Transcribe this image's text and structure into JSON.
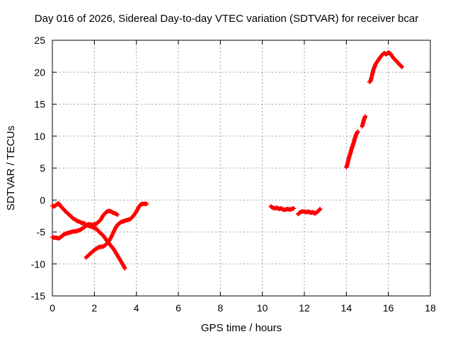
{
  "chart_data": {
    "type": "scatter",
    "title": "Day 016 of 2026, Sidereal Day-to-day VTEC variation (SDTVAR) for receiver bcar",
    "xlabel": "GPS time / hours",
    "ylabel": "SDTVAR / TECUs",
    "xlim": [
      0,
      18
    ],
    "ylim": [
      -15,
      25
    ],
    "xticks": [
      "0",
      "2",
      "4",
      "6",
      "8",
      "10",
      "12",
      "14",
      "16",
      "18"
    ],
    "yticks": [
      "25",
      "20",
      "15",
      "10",
      "5",
      "0",
      "-5",
      "-10",
      "-15"
    ],
    "grid": true,
    "marker": "+",
    "color": "#ff0000",
    "series": [
      {
        "points": [
          [
            0,
            -0.9
          ],
          [
            0.1,
            -1.0
          ],
          [
            0.2,
            -0.7
          ],
          [
            0.3,
            -0.5
          ],
          [
            0.4,
            -1.0
          ],
          [
            0.5,
            -1.3
          ],
          [
            0.6,
            -1.7
          ],
          [
            0.7,
            -2.0
          ],
          [
            0.8,
            -2.3
          ],
          [
            0.9,
            -2.6
          ],
          [
            1.0,
            -2.9
          ],
          [
            1.1,
            -3.1
          ],
          [
            1.2,
            -3.3
          ],
          [
            1.3,
            -3.4
          ],
          [
            1.4,
            -3.6
          ],
          [
            1.5,
            -3.6
          ],
          [
            1.6,
            -3.9
          ],
          [
            1.7,
            -4.0
          ],
          [
            1.8,
            -4.1
          ],
          [
            1.9,
            -4.2
          ],
          [
            2.0,
            -4.4
          ],
          [
            2.1,
            -4.5
          ],
          [
            2.2,
            -4.9
          ],
          [
            2.3,
            -5.2
          ],
          [
            2.4,
            -5.5
          ],
          [
            2.5,
            -5.9
          ],
          [
            2.6,
            -6.4
          ],
          [
            2.7,
            -6.8
          ],
          [
            2.8,
            -7.2
          ],
          [
            2.9,
            -7.6
          ],
          [
            3.0,
            -8.1
          ],
          [
            3.1,
            -8.7
          ],
          [
            3.2,
            -9.2
          ],
          [
            3.3,
            -9.8
          ],
          [
            3.4,
            -10.3
          ],
          [
            3.45,
            -10.7
          ]
        ]
      },
      {
        "points": [
          [
            0,
            -5.8
          ],
          [
            0.1,
            -5.9
          ],
          [
            0.2,
            -5.9
          ],
          [
            0.3,
            -6.0
          ],
          [
            0.4,
            -5.8
          ],
          [
            0.5,
            -5.5
          ],
          [
            0.6,
            -5.3
          ],
          [
            0.7,
            -5.2
          ],
          [
            0.8,
            -5.1
          ],
          [
            0.9,
            -5.0
          ],
          [
            1.0,
            -4.9
          ],
          [
            1.1,
            -4.9
          ],
          [
            1.2,
            -4.8
          ],
          [
            1.3,
            -4.7
          ],
          [
            1.4,
            -4.5
          ],
          [
            1.5,
            -4.3
          ],
          [
            1.6,
            -4.0
          ],
          [
            1.7,
            -3.8
          ],
          [
            1.8,
            -3.8
          ],
          [
            1.9,
            -3.9
          ],
          [
            2.0,
            -3.8
          ],
          [
            2.1,
            -3.7
          ],
          [
            2.2,
            -3.4
          ],
          [
            2.3,
            -3.1
          ],
          [
            2.4,
            -2.5
          ],
          [
            2.5,
            -2.1
          ],
          [
            2.6,
            -1.8
          ],
          [
            2.7,
            -1.7
          ],
          [
            2.8,
            -1.8
          ],
          [
            2.9,
            -2.0
          ],
          [
            3.0,
            -2.1
          ],
          [
            3.1,
            -2.3
          ]
        ]
      },
      {
        "points": [
          [
            1.6,
            -9.0
          ],
          [
            1.7,
            -8.7
          ],
          [
            1.8,
            -8.4
          ],
          [
            1.9,
            -8.1
          ],
          [
            2.0,
            -7.8
          ],
          [
            2.1,
            -7.6
          ],
          [
            2.2,
            -7.4
          ],
          [
            2.3,
            -7.3
          ],
          [
            2.4,
            -7.3
          ],
          [
            2.5,
            -7.1
          ],
          [
            2.6,
            -6.8
          ],
          [
            2.7,
            -6.4
          ],
          [
            2.8,
            -5.8
          ],
          [
            2.9,
            -5.1
          ],
          [
            3.0,
            -4.4
          ],
          [
            3.1,
            -3.9
          ],
          [
            3.2,
            -3.6
          ],
          [
            3.3,
            -3.4
          ],
          [
            3.4,
            -3.3
          ],
          [
            3.5,
            -3.2
          ],
          [
            3.6,
            -3.1
          ],
          [
            3.7,
            -3.0
          ],
          [
            3.8,
            -2.7
          ],
          [
            3.9,
            -2.3
          ],
          [
            4.0,
            -1.8
          ],
          [
            4.1,
            -1.2
          ],
          [
            4.2,
            -0.7
          ],
          [
            4.3,
            -0.6
          ],
          [
            4.4,
            -0.6
          ],
          [
            4.5,
            -0.6
          ]
        ]
      },
      {
        "points": [
          [
            10.4,
            -1.0
          ],
          [
            10.5,
            -1.2
          ],
          [
            10.6,
            -1.3
          ],
          [
            10.7,
            -1.2
          ],
          [
            10.8,
            -1.4
          ],
          [
            10.9,
            -1.3
          ],
          [
            11.0,
            -1.5
          ],
          [
            11.1,
            -1.5
          ],
          [
            11.2,
            -1.4
          ],
          [
            11.3,
            -1.5
          ],
          [
            11.4,
            -1.4
          ],
          [
            11.5,
            -1.3
          ]
        ]
      },
      {
        "points": [
          [
            11.7,
            -2.2
          ],
          [
            11.8,
            -1.9
          ],
          [
            11.9,
            -1.8
          ],
          [
            12.0,
            -1.8
          ],
          [
            12.1,
            -1.9
          ],
          [
            12.2,
            -1.8
          ],
          [
            12.3,
            -2.0
          ],
          [
            12.4,
            -1.9
          ],
          [
            12.5,
            -2.1
          ],
          [
            12.6,
            -1.9
          ],
          [
            12.7,
            -1.6
          ],
          [
            12.75,
            -1.4
          ]
        ]
      },
      {
        "points": [
          [
            14.0,
            5.1
          ],
          [
            14.05,
            5.6
          ],
          [
            14.1,
            6.3
          ],
          [
            14.15,
            6.9
          ],
          [
            14.2,
            7.4
          ],
          [
            14.25,
            8.0
          ],
          [
            14.3,
            8.5
          ],
          [
            14.35,
            9.0
          ],
          [
            14.4,
            9.6
          ],
          [
            14.45,
            10.1
          ],
          [
            14.5,
            10.5
          ],
          [
            14.55,
            10.7
          ]
        ]
      },
      {
        "points": [
          [
            14.75,
            11.5
          ],
          [
            14.8,
            12.1
          ],
          [
            14.85,
            12.7
          ],
          [
            14.9,
            13.1
          ]
        ]
      },
      {
        "points": [
          [
            15.1,
            18.5
          ],
          [
            15.15,
            18.6
          ],
          [
            15.2,
            19.2
          ],
          [
            15.25,
            19.9
          ],
          [
            15.3,
            20.5
          ],
          [
            15.35,
            20.9
          ],
          [
            15.4,
            21.3
          ],
          [
            15.5,
            21.8
          ],
          [
            15.6,
            22.3
          ],
          [
            15.7,
            22.7
          ],
          [
            15.8,
            23.0
          ],
          [
            15.9,
            22.8
          ],
          [
            16.0,
            23.1
          ],
          [
            16.1,
            22.9
          ],
          [
            16.2,
            22.4
          ],
          [
            16.3,
            22.0
          ],
          [
            16.4,
            21.7
          ],
          [
            16.5,
            21.3
          ],
          [
            16.6,
            21.0
          ],
          [
            16.65,
            20.8
          ]
        ]
      }
    ]
  }
}
